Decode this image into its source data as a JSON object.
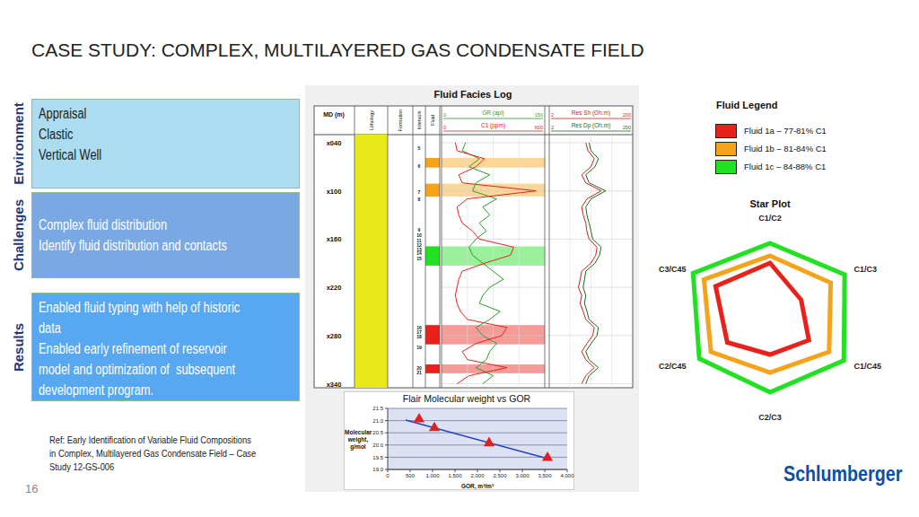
{
  "title": "CASE STUDY: COMPLEX, MULTILAYERED GAS CONDENSATE FIELD",
  "sections": [
    {
      "label": "Environment",
      "lines": [
        "Appraisal",
        "Clastic",
        "Vertical Well"
      ],
      "color": "#abdcf0"
    },
    {
      "label": "Challenges",
      "lines": [
        "Complex fluid distribution",
        "Identify fluid distribution and contacts"
      ],
      "color": "#7aa8e2"
    },
    {
      "label": "Results",
      "lines": [
        "Enabled fluid typing with help of historic",
        "data",
        "Enabled early refinement of reservoir",
        "model and optimization of  subsequent",
        "development program."
      ],
      "color": "#57a8f0"
    }
  ],
  "reference": [
    "Ref: Early Identification of Variable Fluid Compositions",
    "in Complex, Multilayered Gas Condensate Field – Case",
    "Study 12-GS-006"
  ],
  "page": "16",
  "logo": "Schlumberger",
  "fluid_legend": {
    "title": "Fluid Legend",
    "items": [
      {
        "name": "Fluid 1a – 77-81% C1",
        "color": "#e8221b"
      },
      {
        "name": "Fluid 1b – 81-84% C1",
        "color": "#f5a31a"
      },
      {
        "name": "Fluid 1c – 84-88% C1",
        "color": "#22e022"
      }
    ]
  },
  "log": {
    "title": "Fluid Facies Log",
    "depth_label": "MD (m)",
    "ylim": [
      30,
      345
    ],
    "yticks": [
      {
        "value": 40,
        "label": "x040"
      },
      {
        "value": 100,
        "label": "x100"
      },
      {
        "value": 160,
        "label": "x160"
      },
      {
        "value": 220,
        "label": "x220"
      },
      {
        "value": 280,
        "label": "x280"
      },
      {
        "value": 340,
        "label": "x340"
      }
    ],
    "columns": [
      "Lithology",
      "Formation",
      "Intervals",
      "Fluid"
    ],
    "intervals": [
      {
        "label": "5",
        "depth": 47
      },
      {
        "label": "6",
        "depth": 69
      },
      {
        "label": "7",
        "depth": 102
      },
      {
        "label": "8",
        "depth": 110
      },
      {
        "label": "9",
        "depth": 148
      },
      {
        "label": "10",
        "depth": 155
      },
      {
        "label": "11",
        "depth": 162
      },
      {
        "label": "12",
        "depth": 167
      },
      {
        "label": "13",
        "depth": 173
      },
      {
        "label": "14",
        "depth": 178
      },
      {
        "label": "15",
        "depth": 184
      },
      {
        "label": "16",
        "depth": 270
      },
      {
        "label": "17",
        "depth": 276
      },
      {
        "label": "18",
        "depth": 281
      },
      {
        "label": "19",
        "depth": 295
      },
      {
        "label": "20",
        "depth": 320
      },
      {
        "label": "21",
        "depth": 326
      }
    ],
    "fluids": [
      {
        "top": 59,
        "base": 71,
        "color": "#f5a31a"
      },
      {
        "top": 91,
        "base": 107,
        "color": "#f5a31a"
      },
      {
        "top": 169,
        "base": 193,
        "color": "#22e022"
      },
      {
        "top": 267,
        "base": 291,
        "color": "#e8221b"
      },
      {
        "top": 316,
        "base": 327,
        "color": "#e8221b"
      }
    ],
    "depths": [
      40,
      50,
      60,
      70,
      80,
      90,
      100,
      110,
      120,
      130,
      140,
      150,
      160,
      170,
      180,
      190,
      200,
      210,
      220,
      230,
      240,
      250,
      260,
      270,
      280,
      290,
      300,
      310,
      320,
      330,
      340
    ],
    "tracks": [
      {
        "log": false,
        "curves": [
          {
            "name": "GR (api)",
            "xlim": [
              0,
              150
            ],
            "color": "#2a9d2a",
            "values": [
              35,
              30,
              55,
              40,
              70,
              50,
              45,
              80,
              60,
              70,
              55,
              65,
              50,
              40,
              45,
              60,
              75,
              90,
              70,
              60,
              55,
              85,
              70,
              50,
              60,
              80,
              70,
              65,
              50,
              75,
              60
            ]
          },
          {
            "name": "C1 (ppm)",
            "xlim": [
              0,
              600
            ],
            "color": "#e8221b",
            "values": [
              80,
              90,
              250,
              200,
              100,
              120,
              550,
              150,
              90,
              100,
              120,
              180,
              220,
              420,
              400,
              250,
              120,
              100,
              90,
              80,
              90,
              110,
              150,
              380,
              350,
              200,
              120,
              150,
              380,
              160,
              90
            ]
          }
        ]
      },
      {
        "log": true,
        "curves": [
          {
            "name": "Res Sh (Oh.m)",
            "xlim": [
              2,
              200
            ],
            "color": "#d0201a",
            "values": [
              15,
              17,
              24,
              20,
              12,
              15,
              35,
              16,
              12,
              13,
              15,
              16,
              18,
              28,
              26,
              20,
              12,
              11,
              10,
              12,
              11,
              13,
              15,
              24,
              22,
              16,
              12,
              15,
              24,
              15,
              12
            ]
          },
          {
            "name": "Res Dp (Oh.m)",
            "xlim": [
              2,
              200
            ],
            "color": "#1b6b1b",
            "values": [
              18,
              20,
              30,
              25,
              15,
              18,
              45,
              20,
              15,
              16,
              18,
              20,
              22,
              35,
              32,
              25,
              15,
              14,
              13,
              15,
              14,
              16,
              18,
              30,
              28,
              20,
              15,
              18,
              30,
              18,
              15
            ]
          }
        ]
      }
    ]
  },
  "chart_data": [
    {
      "type": "radar",
      "title": "Star Plot",
      "categories": [
        "C1/C2",
        "C1/C3",
        "C1/C45",
        "C2/C3",
        "C2/C45",
        "C3/C45"
      ],
      "ylim": [
        0,
        1
      ],
      "grid": false,
      "tick_labels": "x",
      "series": [
        {
          "name": "Fluid 1a – 77-81% C1",
          "color": "#e8221b",
          "values": [
            0.61,
            0.4,
            0.5,
            0.41,
            0.55,
            0.7
          ]
        },
        {
          "name": "Fluid 1b – 81-84% C1",
          "color": "#f5a31a",
          "values": [
            0.69,
            0.78,
            0.76,
            0.61,
            0.76,
            0.85
          ]
        },
        {
          "name": "Fluid 1c – 84-88% C1",
          "color": "#22e022",
          "values": [
            0.83,
            0.96,
            0.95,
            0.83,
            0.91,
            0.99
          ]
        }
      ]
    },
    {
      "type": "scatter",
      "title": "Flair Molecular weight vs GOR",
      "x_label": "GOR, m³/m³",
      "y_label": "Molecular weight, g/mol",
      "xlim": [
        0,
        4000
      ],
      "xticks": [
        0,
        500,
        {
          "value": 1000,
          "label": "1,000"
        },
        {
          "value": 1500,
          "label": "1,500"
        },
        {
          "value": 2000,
          "label": "2,000"
        },
        {
          "value": 2500,
          "label": "2,500"
        },
        {
          "value": 3000,
          "label": "3,000"
        },
        {
          "value": 3500,
          "label": "3,500"
        },
        {
          "value": 4000,
          "label": "4,000"
        }
      ],
      "ylim": [
        19,
        21.5
      ],
      "yticks": [
        {
          "value": 19,
          "label": "19.0"
        },
        19.5,
        {
          "value": 20,
          "label": "20.0"
        },
        20.5,
        {
          "value": 21,
          "label": "21.0"
        },
        21.5
      ],
      "grid": true,
      "series": [
        {
          "type": "line",
          "color": "#1f3fbf",
          "x": [
            400,
            3550
          ],
          "values": [
            21.02,
            19.45
          ]
        },
        {
          "type": "scatter",
          "color": "#e02020",
          "marker": "triangle",
          "x": [
            700,
            1040,
            2260,
            3560
          ],
          "values": [
            21.06,
            20.7,
            20.08,
            19.48
          ]
        }
      ]
    }
  ]
}
